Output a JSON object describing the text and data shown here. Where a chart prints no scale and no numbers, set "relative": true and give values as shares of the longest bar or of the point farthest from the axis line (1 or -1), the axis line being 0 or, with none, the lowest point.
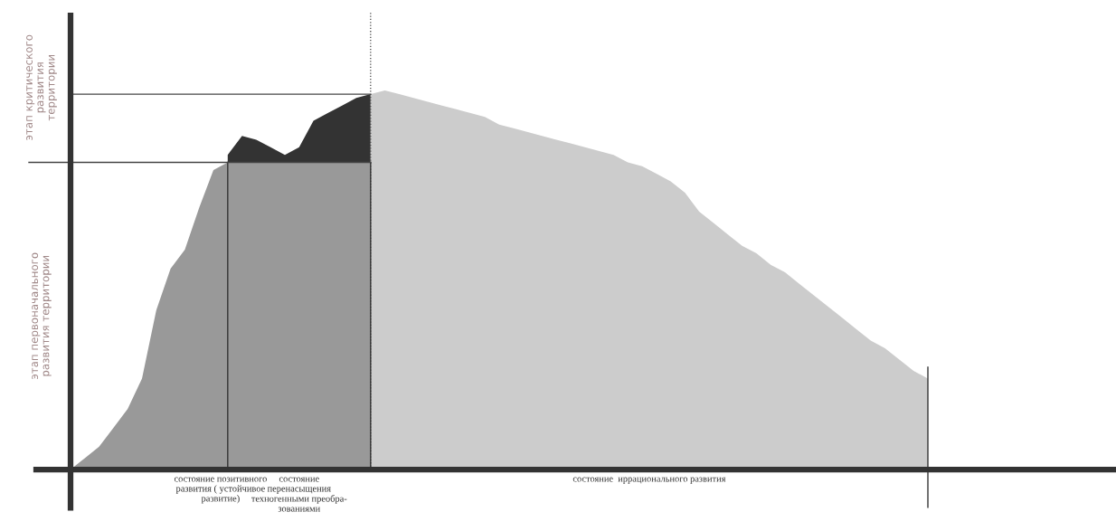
{
  "chart_data": {
    "type": "area",
    "relative": true,
    "categories": [
      null,
      null,
      null,
      null,
      null,
      null,
      null,
      null,
      null,
      null,
      null,
      null,
      null,
      null,
      null,
      null,
      null,
      null,
      null,
      null,
      null,
      null,
      null,
      null,
      null,
      null,
      null,
      null,
      null,
      null,
      null,
      null,
      null,
      null,
      null,
      null,
      null,
      null,
      null,
      null,
      null,
      null,
      null,
      null,
      null,
      null,
      null,
      null,
      null,
      null,
      null,
      null,
      null,
      null,
      null,
      null,
      null,
      null,
      null,
      null,
      null
    ],
    "series": [
      {
        "name": "состояние\nперенасыщения\nтехногенными преобра-\nзованиями",
        "color": "#333333",
        "values": [
          null,
          null,
          null,
          null,
          null,
          null,
          null,
          null,
          null,
          null,
          null,
          0.83,
          0.88,
          0.87,
          0.85,
          0.83,
          0.85,
          0.92,
          0.94,
          0.96,
          0.98,
          0.99,
          null,
          null,
          null,
          null,
          null,
          null,
          null,
          null,
          null,
          null,
          null,
          null,
          null,
          null,
          null,
          null,
          null,
          null,
          null,
          null,
          null,
          null,
          null,
          null,
          null,
          null,
          null,
          null,
          null,
          null,
          null,
          null,
          null,
          null,
          null,
          null,
          null,
          null,
          null
        ]
      },
      {
        "name": "состояние позитивного\nразвития ( устойчивое\nразвитие)",
        "color": "#999999",
        "values": [
          0,
          0.03,
          0.06,
          0.11,
          0.16,
          0.24,
          0.42,
          0.53,
          0.58,
          0.69,
          0.79,
          0.81,
          0.81,
          0.81,
          0.81,
          0.81,
          0.81,
          0.81,
          0.81,
          0.81,
          0.81,
          0.81,
          null,
          null,
          null,
          null,
          null,
          null,
          null,
          null,
          null,
          null,
          null,
          null,
          null,
          null,
          null,
          null,
          null,
          null,
          null,
          null,
          null,
          null,
          null,
          null,
          null,
          null,
          null,
          null,
          null,
          null,
          null,
          null,
          null,
          null,
          null,
          null,
          null,
          null,
          null
        ]
      },
      {
        "name": "состояние  иррационального развития",
        "color": "#cccccc",
        "values": [
          null,
          null,
          null,
          null,
          null,
          null,
          null,
          null,
          null,
          null,
          null,
          null,
          null,
          null,
          null,
          null,
          null,
          null,
          null,
          null,
          null,
          0.99,
          1.0,
          0.99,
          0.98,
          0.97,
          0.96,
          0.95,
          0.94,
          0.93,
          0.91,
          0.9,
          0.89,
          0.88,
          0.87,
          0.86,
          0.85,
          0.84,
          0.83,
          0.81,
          0.8,
          0.78,
          0.76,
          0.73,
          0.68,
          0.65,
          0.62,
          0.59,
          0.57,
          0.54,
          0.52,
          0.49,
          0.46,
          0.43,
          0.4,
          0.37,
          0.34,
          0.32,
          0.29,
          0.26,
          0.24
        ]
      }
    ],
    "ref_lines": [
      {
        "axis": "y",
        "value": 0.81
      },
      {
        "axis": "y",
        "value": 0.99
      }
    ],
    "annotations": [
      "этап первоначального\nразвития территории",
      "этап критического\nразвития\nтерритории"
    ]
  }
}
